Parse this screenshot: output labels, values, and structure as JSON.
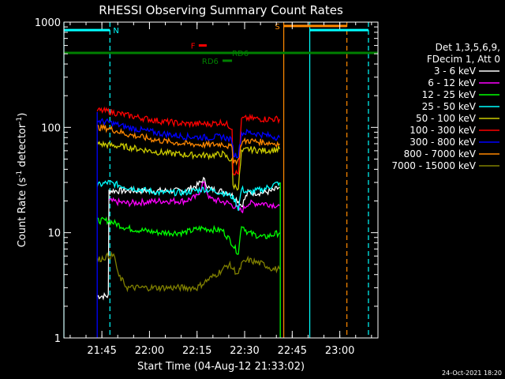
{
  "chart_data": {
    "type": "line",
    "title": "RHESSI Observing Summary Count Rates",
    "xlabel": "Start Time (04-Aug-12 21:33:02)",
    "ylabel_main": "Count Rate (s",
    "ylabel_sup1": "-1",
    "ylabel_mid": " detector",
    "ylabel_sup2": "-1",
    "ylabel_end": ")",
    "y_scale": "log",
    "ylim": [
      1,
      1000
    ],
    "xlim_minutes": [
      0,
      99
    ],
    "x_ticks": [
      {
        "label": "21:45",
        "minute": 11.97
      },
      {
        "label": "22:00",
        "minute": 26.97
      },
      {
        "label": "22:15",
        "minute": 41.97
      },
      {
        "label": "22:30",
        "minute": 56.97
      },
      {
        "label": "22:45",
        "minute": 71.97
      },
      {
        "label": "23:00",
        "minute": 86.97
      }
    ],
    "y_ticks": [
      {
        "label": "1",
        "value": 1
      },
      {
        "label": "10",
        "value": 10
      },
      {
        "label": "100",
        "value": 100
      },
      {
        "label": "1000",
        "value": 1000
      }
    ],
    "legend_header": [
      "Det 1,3,5,6,9,",
      "FDecim 1, Att 0"
    ],
    "legend_placement": "right",
    "series": [
      {
        "name": "3 - 6 keV",
        "color": "#ffffff",
        "points": [
          [
            10.5,
            2.5
          ],
          [
            14,
            2.5
          ],
          [
            14.2,
            25
          ],
          [
            20,
            25
          ],
          [
            30,
            25
          ],
          [
            38,
            25
          ],
          [
            42,
            28
          ],
          [
            44,
            32
          ],
          [
            46,
            26
          ],
          [
            52,
            24
          ],
          [
            55,
            20
          ],
          [
            56,
            18
          ],
          [
            58,
            24
          ],
          [
            63,
            24
          ],
          [
            66,
            25
          ],
          [
            68,
            27
          ]
        ]
      },
      {
        "name": "6 - 12 keV",
        "color": "#ff00ff",
        "points": [
          [
            14.2,
            20
          ],
          [
            20,
            19
          ],
          [
            30,
            20
          ],
          [
            38,
            20
          ],
          [
            42,
            22
          ],
          [
            44,
            30
          ],
          [
            46,
            21
          ],
          [
            52,
            19
          ],
          [
            55,
            17
          ],
          [
            56,
            16
          ],
          [
            58,
            19
          ],
          [
            63,
            19
          ],
          [
            68,
            18
          ]
        ]
      },
      {
        "name": "12 - 25 keV",
        "color": "#00ff00",
        "points": [
          [
            10.5,
            13
          ],
          [
            14,
            13
          ],
          [
            20,
            11
          ],
          [
            30,
            10
          ],
          [
            38,
            10
          ],
          [
            43,
            11
          ],
          [
            50,
            10.5
          ],
          [
            53,
            8
          ],
          [
            54,
            7
          ],
          [
            55,
            6.5
          ],
          [
            56,
            12
          ],
          [
            58,
            10
          ],
          [
            63,
            9
          ],
          [
            68,
            10
          ]
        ]
      },
      {
        "name": "25 - 50 keV",
        "color": "#00ffff",
        "points": [
          [
            10.5,
            28
          ],
          [
            14,
            30
          ],
          [
            20,
            27
          ],
          [
            30,
            24
          ],
          [
            38,
            24
          ],
          [
            44,
            26
          ],
          [
            50,
            24
          ],
          [
            53,
            22
          ],
          [
            54,
            20
          ],
          [
            55,
            17
          ],
          [
            56,
            26
          ],
          [
            58,
            24
          ],
          [
            63,
            26
          ],
          [
            68,
            30
          ]
        ]
      },
      {
        "name": "50 - 100 keV",
        "color": "#cccc00",
        "points": [
          [
            10.5,
            70
          ],
          [
            14,
            68
          ],
          [
            20,
            65
          ],
          [
            30,
            58
          ],
          [
            38,
            55
          ],
          [
            46,
            54
          ],
          [
            50,
            56
          ],
          [
            53,
            48
          ],
          [
            53.3,
            28
          ],
          [
            55,
            27
          ],
          [
            56,
            58
          ],
          [
            58,
            62
          ],
          [
            63,
            60
          ],
          [
            68,
            62
          ]
        ]
      },
      {
        "name": "100 - 300 keV",
        "color": "#ff0000",
        "points": [
          [
            10.5,
            145
          ],
          [
            14,
            142
          ],
          [
            20,
            130
          ],
          [
            30,
            115
          ],
          [
            38,
            108
          ],
          [
            46,
            108
          ],
          [
            50,
            112
          ],
          [
            53,
            100
          ],
          [
            53.3,
            38
          ],
          [
            55,
            36
          ],
          [
            56,
            120
          ],
          [
            58,
            122
          ],
          [
            63,
            120
          ],
          [
            68,
            120
          ]
        ]
      },
      {
        "name": "300 - 800 keV",
        "color": "#0000ff",
        "points": [
          [
            10.5,
            115
          ],
          [
            14,
            112
          ],
          [
            20,
            100
          ],
          [
            30,
            88
          ],
          [
            38,
            82
          ],
          [
            46,
            80
          ],
          [
            50,
            82
          ],
          [
            53,
            75
          ],
          [
            53.5,
            55
          ],
          [
            55,
            55
          ],
          [
            56,
            88
          ],
          [
            58,
            90
          ],
          [
            63,
            85
          ],
          [
            68,
            80
          ]
        ]
      },
      {
        "name": "800 - 7000 keV",
        "color": "#ff8800",
        "points": [
          [
            10.5,
            100
          ],
          [
            14,
            98
          ],
          [
            20,
            86
          ],
          [
            30,
            75
          ],
          [
            38,
            70
          ],
          [
            46,
            68
          ],
          [
            50,
            70
          ],
          [
            53,
            64
          ],
          [
            53.5,
            48
          ],
          [
            55,
            48
          ],
          [
            56,
            72
          ],
          [
            58,
            75
          ],
          [
            63,
            72
          ],
          [
            68,
            70
          ]
        ]
      },
      {
        "name": "7000 - 15000 keV",
        "color": "#808000",
        "points": [
          [
            10.5,
            5.5
          ],
          [
            14,
            6
          ],
          [
            16,
            6
          ],
          [
            17,
            4
          ],
          [
            20,
            3
          ],
          [
            30,
            3
          ],
          [
            38,
            3
          ],
          [
            42,
            3
          ],
          [
            45,
            3.5
          ],
          [
            48,
            4
          ],
          [
            52,
            5
          ],
          [
            55,
            4
          ],
          [
            56,
            5
          ],
          [
            58,
            5.5
          ],
          [
            63,
            5
          ],
          [
            66,
            4.5
          ],
          [
            68,
            4.5
          ]
        ]
      }
    ],
    "extra_lines": [
      {
        "name": "blue-rise",
        "color": "#0000ff",
        "points": [
          [
            10.5,
            1
          ],
          [
            10.5,
            140
          ]
        ]
      },
      {
        "name": "green-drop",
        "color": "#00ff00",
        "points": [
          [
            68.2,
            30
          ],
          [
            68.2,
            1
          ]
        ]
      }
    ],
    "vertical_markers": [
      {
        "minute": 0,
        "color": "#00ffff",
        "dashed": false
      },
      {
        "minute": 14.5,
        "color": "#00ffff",
        "dashed": true
      },
      {
        "minute": 69.3,
        "color": "#ff8800",
        "dashed": false
      },
      {
        "minute": 77.5,
        "color": "#00ffff",
        "dashed": false
      },
      {
        "minute": 89.2,
        "color": "#ff8800",
        "dashed": true
      },
      {
        "minute": 96,
        "color": "#00ffff",
        "dashed": true
      }
    ],
    "flag_bars": [
      {
        "label": "N",
        "color": "#00ffff",
        "y": 840,
        "x": [
          0,
          14.5
        ],
        "label_minute": 15.5
      },
      {
        "label": "S",
        "color": "#ff8800",
        "y": 920,
        "x": [
          69.3,
          89.2
        ],
        "label_minute": 66.5
      },
      {
        "label": "",
        "color": "#00ffff",
        "y": 840,
        "x": [
          77.5,
          96
        ]
      },
      {
        "label": "F",
        "color": "#ff0000",
        "y": 600,
        "x": [
          42.5,
          45
        ],
        "label_minute": 40
      },
      {
        "label": "RD6",
        "color": "#008000",
        "y": 510,
        "x": [
          0,
          99
        ],
        "label_minute": 53
      },
      {
        "label": "RD6",
        "color": "#008000",
        "y": 430,
        "x": [
          50,
          53
        ],
        "label_minute": 43.5
      }
    ],
    "footer_date": "24-Oct-2021 18:20"
  }
}
